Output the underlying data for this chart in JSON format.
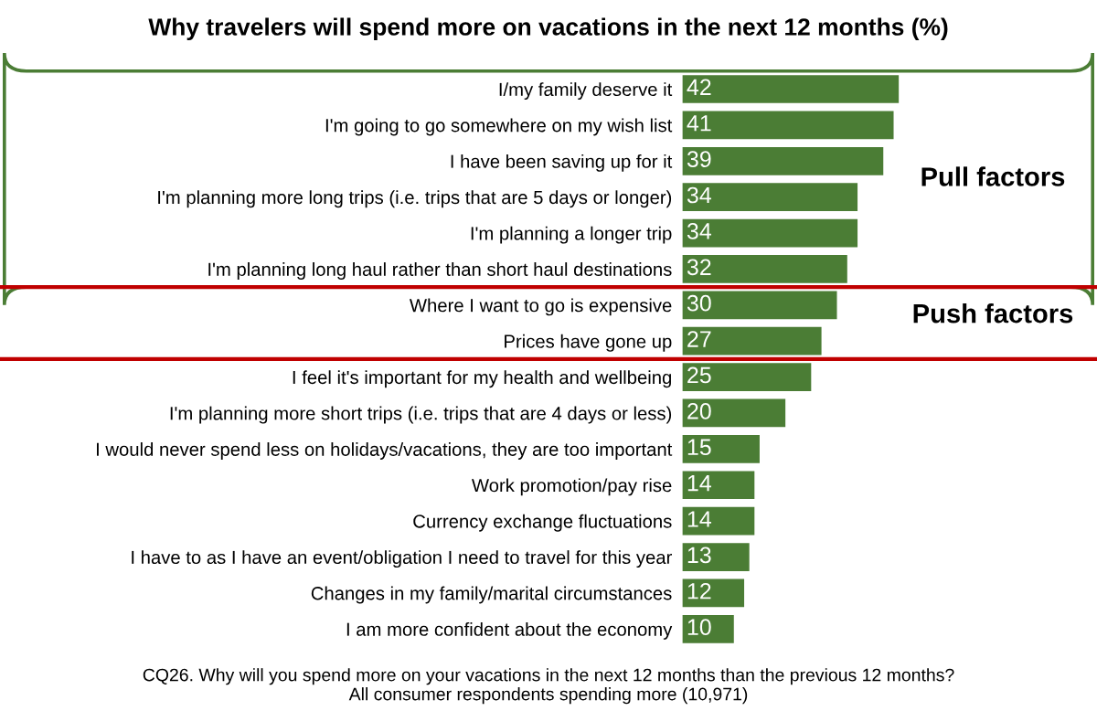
{
  "chart_data": {
    "type": "bar",
    "orientation": "horizontal",
    "title": "Why travelers will spend more on vacations in the next 12 months (%)",
    "categories": [
      "I/my family deserve it",
      "I'm going to go somewhere on my wish list",
      "I have been saving up for it",
      "I'm planning more long trips (i.e. trips that are 5 days or longer)",
      "I'm planning a longer trip",
      "I'm planning long haul rather than short haul destinations",
      "Where I want to go is expensive",
      "Prices have gone up",
      "I feel it's important for my health and wellbeing",
      "I'm planning more short trips (i.e. trips that are 4 days or less)",
      "I would never spend less on holidays/vacations, they are too important",
      "Work promotion/pay rise",
      "Currency exchange fluctuations",
      "I have to as I have an event/obligation I need to travel for this year",
      "Changes in my family/marital circumstances",
      "I am more confident about the economy"
    ],
    "values": [
      42,
      41,
      39,
      34,
      34,
      32,
      30,
      27,
      25,
      20,
      15,
      14,
      14,
      13,
      12,
      10
    ],
    "color": "#4b7d35",
    "data_labels": true,
    "grid": false,
    "legend": false,
    "annotations": [
      "Pull factors",
      "Push factors",
      "CQ26. Why will you spend more on your vacations in the next 12 months than the previous 12 months?\nAll consumer respondents spending more (10,971)"
    ]
  }
}
